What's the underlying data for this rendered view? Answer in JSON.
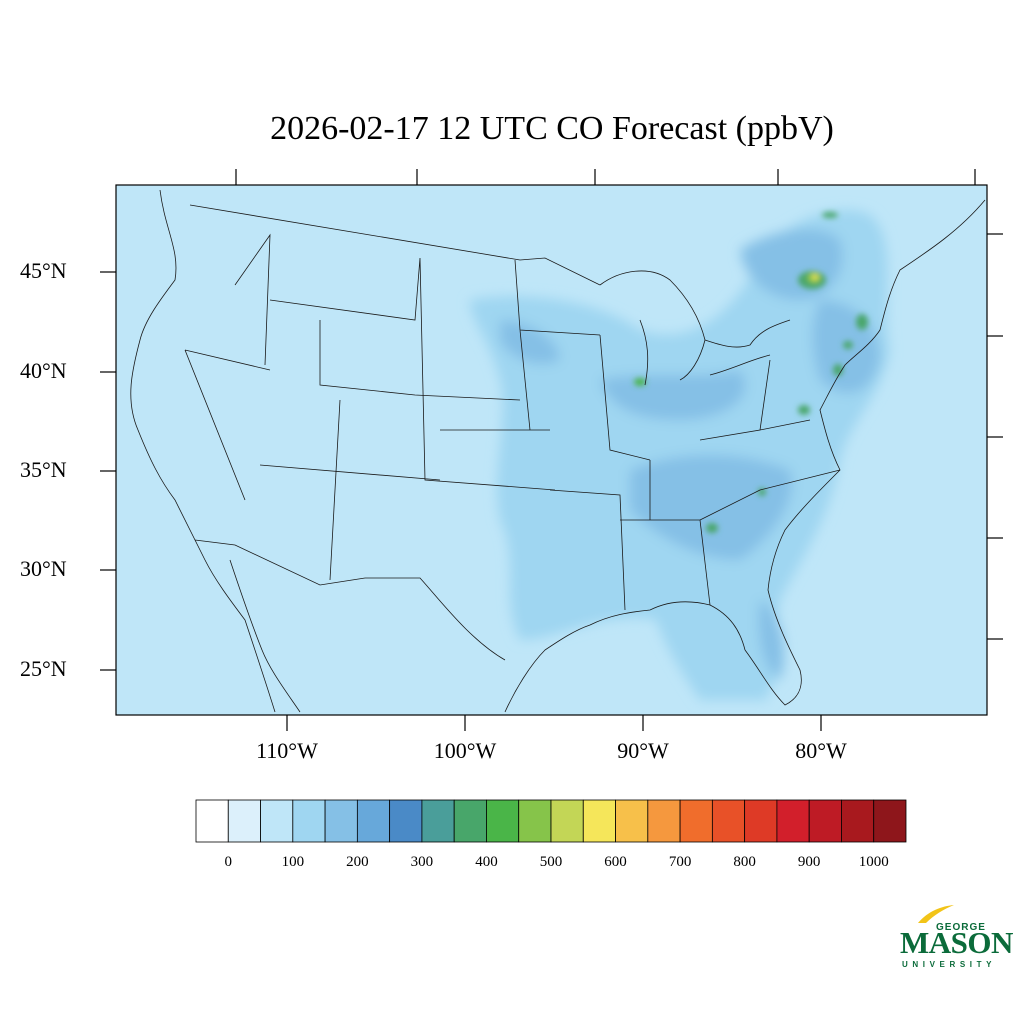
{
  "title": "2026-02-17 12 UTC CO Forecast (ppbV)",
  "lat_labels": [
    "45°N",
    "40°N",
    "35°N",
    "30°N",
    "25°N"
  ],
  "lon_labels": [
    "110°W",
    "100°W",
    "90°W",
    "80°W"
  ],
  "colorbar": {
    "tick_labels": [
      "0",
      "100",
      "200",
      "300",
      "400",
      "500",
      "600",
      "700",
      "800",
      "900",
      "1000"
    ],
    "colors": [
      "#ffffff",
      "#dcf0fb",
      "#bfe6f8",
      "#9fd6f1",
      "#85c0e6",
      "#67a8da",
      "#4a8ac7",
      "#4a9e9a",
      "#48a66a",
      "#4ab548",
      "#86c44a",
      "#c3d656",
      "#f5e65a",
      "#f7c04a",
      "#f5983e",
      "#f06d2c",
      "#e85128",
      "#de3a26",
      "#d21f2b",
      "#be1b25",
      "#a8191e",
      "#8e161b"
    ]
  },
  "map": {
    "background_color": "#bfe6f8",
    "plume_color": "#9fd6f1",
    "plume_dark_color": "#85c0e6",
    "hotspot_colors": [
      "#48a66a",
      "#4ab548",
      "#86c44a",
      "#f5e65a",
      "#f06d2c"
    ]
  },
  "logo": {
    "line1": "GEORGE",
    "line2": "MASON",
    "line3": "UNIVERSITY"
  }
}
